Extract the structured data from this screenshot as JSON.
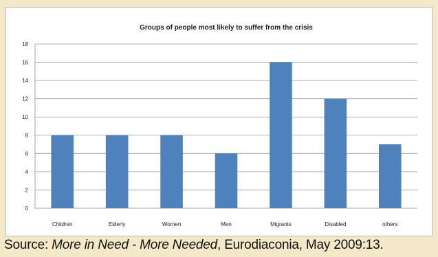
{
  "chart_data": {
    "type": "bar",
    "title": "Groups of people most likely to suffer from the crisis",
    "categories": [
      "Children",
      "Elderly",
      "Women",
      "Men",
      "Migrants",
      "Disabled",
      "others"
    ],
    "values": [
      8,
      8,
      8,
      6,
      16,
      12,
      7
    ],
    "ylim": [
      0,
      18
    ],
    "yticks": [
      0,
      2,
      4,
      6,
      8,
      10,
      12,
      14,
      16,
      18
    ],
    "grid": true,
    "legend": "none",
    "bar_color": "#4f81bd"
  },
  "source": {
    "prefix": "Source: ",
    "title": "More in Need - More Needed",
    "suffix": ", Eurodiaconia, May 2009:13."
  }
}
